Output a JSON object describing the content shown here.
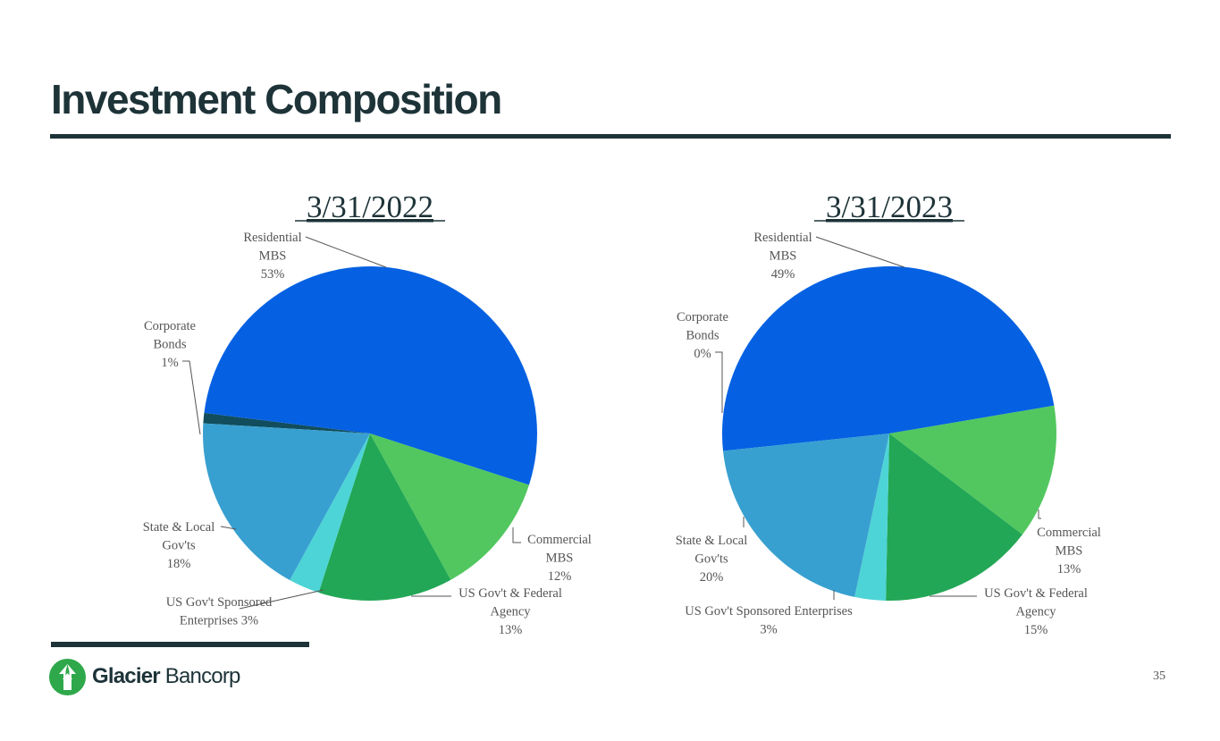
{
  "page": {
    "title": "Investment Composition",
    "page_number": "35"
  },
  "logo": {
    "name_bold": "Glacier",
    "name_light": "Bancorp",
    "icon": "glacier-arrow-logo",
    "brand_color": "#2ea84a"
  },
  "colors": {
    "Residential MBS": "#0561e2",
    "Commercial MBS": "#52c75f",
    "US Gov't & Federal Agency": "#22a756",
    "US Gov't Sponsored Enterprises": "#4dd4d6",
    "State & Local Gov'ts": "#38a0d0",
    "Corporate Bonds": "#114d5d"
  },
  "chart_data": [
    {
      "type": "pie",
      "title": "3/31/2022",
      "categories": [
        "Residential MBS",
        "Commercial MBS",
        "US Gov't & Federal Agency",
        "US Gov't Sponsored Enterprises",
        "State & Local Gov'ts",
        "Corporate Bonds"
      ],
      "values": [
        53,
        12,
        13,
        3,
        18,
        1
      ],
      "labels": [
        [
          "Residential",
          "MBS",
          "53%"
        ],
        [
          "Commercial",
          "MBS",
          "12%"
        ],
        [
          "US Gov't & Federal",
          "Agency",
          "13%"
        ],
        [
          "US Gov't Sponsored",
          "Enterprises 3%"
        ],
        [
          "State & Local",
          "Gov'ts",
          "18%"
        ],
        [
          "Corporate",
          "Bonds",
          "1%"
        ]
      ]
    },
    {
      "type": "pie",
      "title": "3/31/2023",
      "categories": [
        "Residential MBS",
        "Commercial MBS",
        "US Gov't & Federal Agency",
        "US Gov't Sponsored Enterprises",
        "State & Local Gov'ts",
        "Corporate Bonds"
      ],
      "values": [
        49,
        13,
        15,
        3,
        20,
        0
      ],
      "labels": [
        [
          "Residential",
          "MBS",
          "49%"
        ],
        [
          "Commercial",
          "MBS",
          "13%"
        ],
        [
          "US Gov't & Federal",
          "Agency",
          "15%"
        ],
        [
          "US Gov't Sponsored Enterprises",
          "3%"
        ],
        [
          "State & Local",
          "Gov'ts",
          "20%"
        ],
        [
          "Corporate",
          "Bonds",
          "0%"
        ]
      ]
    }
  ]
}
